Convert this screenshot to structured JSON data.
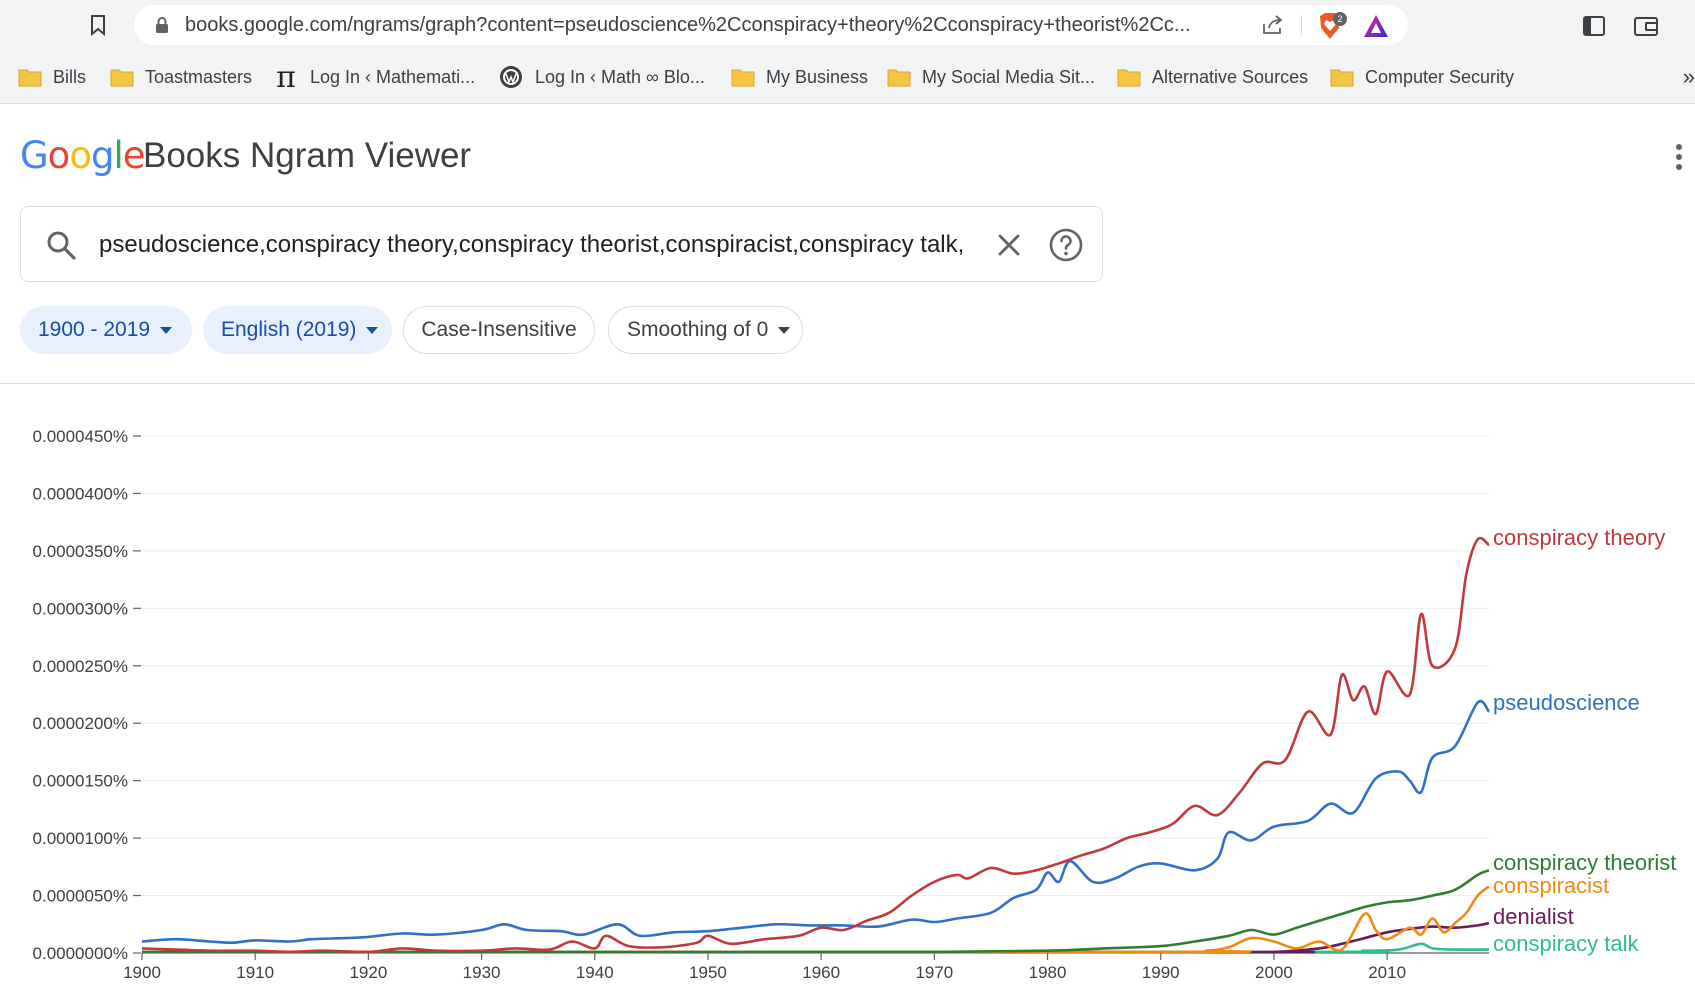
{
  "browser": {
    "url": "books.google.com/ngrams/graph?content=pseudoscience%2Cconspiracy+theory%2Cconspiracy+theorist%2Cc...",
    "brave_badge": "2",
    "bookmarks": [
      {
        "label": "Bills",
        "icon": "folder-icon"
      },
      {
        "label": "Toastmasters",
        "icon": "folder-icon"
      },
      {
        "label": "Log In ‹ Mathemati...",
        "icon": "pi-icon"
      },
      {
        "label": "Log In ‹ Math ∞ Blo...",
        "icon": "wordpress-icon"
      },
      {
        "label": "My Business",
        "icon": "folder-icon"
      },
      {
        "label": "My Social Media Sit...",
        "icon": "folder-icon"
      },
      {
        "label": "Alternative Sources",
        "icon": "folder-icon"
      },
      {
        "label": "Computer Security",
        "icon": "folder-icon"
      }
    ],
    "bookmarks_more": "»"
  },
  "header": {
    "logo": {
      "g1": "G",
      "o1": "o",
      "o2": "o",
      "g2": "g",
      "l": "l",
      "e": "e"
    },
    "title": "Books Ngram Viewer"
  },
  "search": {
    "value": "pseudoscience,conspiracy theory,conspiracy theorist,conspiracist,conspiracy talk,"
  },
  "filters": {
    "years": "1900 - 2019",
    "corpus": "English (2019)",
    "case": "Case-Insensitive",
    "smoothing": "Smoothing of 0"
  },
  "chart_data": {
    "type": "line",
    "x_range": [
      1900,
      2019
    ],
    "ylim": [
      0,
      4.5e-05
    ],
    "y_unit": "%",
    "y_ticks": [
      "0.0000000%",
      "0.0000050%",
      "0.0000100%",
      "0.0000150%",
      "0.0000200%",
      "0.0000250%",
      "0.0000300%",
      "0.0000350%",
      "0.0000400%",
      "0.0000450%"
    ],
    "x_ticks": [
      "1900",
      "1910",
      "1920",
      "1930",
      "1940",
      "1950",
      "1960",
      "1970",
      "1980",
      "1990",
      "2000",
      "2010"
    ],
    "grid": true,
    "series": [
      {
        "name": "conspiracy theory",
        "color": "#c0393b",
        "points": [
          [
            1900,
            4e-07
          ],
          [
            1903,
            3e-07
          ],
          [
            1906,
            2e-07
          ],
          [
            1910,
            2e-07
          ],
          [
            1913,
            1e-07
          ],
          [
            1916,
            2e-07
          ],
          [
            1920,
            1e-07
          ],
          [
            1923,
            4e-07
          ],
          [
            1926,
            2e-07
          ],
          [
            1930,
            2e-07
          ],
          [
            1933,
            4e-07
          ],
          [
            1936,
            3e-07
          ],
          [
            1938,
            1e-06
          ],
          [
            1940,
            4e-07
          ],
          [
            1941,
            1.5e-06
          ],
          [
            1943,
            6e-07
          ],
          [
            1946,
            5e-07
          ],
          [
            1949,
            9e-07
          ],
          [
            1950,
            1.5e-06
          ],
          [
            1952,
            8e-07
          ],
          [
            1955,
            1.2e-06
          ],
          [
            1958,
            1.5e-06
          ],
          [
            1960,
            2.2e-06
          ],
          [
            1962,
            2e-06
          ],
          [
            1964,
            2.8e-06
          ],
          [
            1966,
            3.5e-06
          ],
          [
            1968,
            5e-06
          ],
          [
            1970,
            6.2e-06
          ],
          [
            1972,
            6.8e-06
          ],
          [
            1973,
            6.5e-06
          ],
          [
            1975,
            7.4e-06
          ],
          [
            1977,
            6.9e-06
          ],
          [
            1979,
            7.2e-06
          ],
          [
            1981,
            7.8e-06
          ],
          [
            1983,
            8.5e-06
          ],
          [
            1985,
            9.1e-06
          ],
          [
            1987,
            1e-05
          ],
          [
            1989,
            1.05e-05
          ],
          [
            1991,
            1.12e-05
          ],
          [
            1993,
            1.28e-05
          ],
          [
            1995,
            1.2e-05
          ],
          [
            1997,
            1.4e-05
          ],
          [
            1999,
            1.65e-05
          ],
          [
            2001,
            1.68e-05
          ],
          [
            2003,
            2.1e-05
          ],
          [
            2005,
            1.9e-05
          ],
          [
            2006,
            2.42e-05
          ],
          [
            2007,
            2.2e-05
          ],
          [
            2008,
            2.32e-05
          ],
          [
            2009,
            2.08e-05
          ],
          [
            2010,
            2.45e-05
          ],
          [
            2012,
            2.25e-05
          ],
          [
            2013,
            2.95e-05
          ],
          [
            2014,
            2.5e-05
          ],
          [
            2016,
            2.65e-05
          ],
          [
            2017,
            3.3e-05
          ],
          [
            2018,
            3.6e-05
          ],
          [
            2019,
            3.55e-05
          ]
        ]
      },
      {
        "name": "pseudoscience",
        "color": "#3071c4",
        "points": [
          [
            1900,
            1e-06
          ],
          [
            1903,
            1.2e-06
          ],
          [
            1906,
            1e-06
          ],
          [
            1908,
            9e-07
          ],
          [
            1910,
            1.1e-06
          ],
          [
            1913,
            1e-06
          ],
          [
            1915,
            1.2e-06
          ],
          [
            1918,
            1.3e-06
          ],
          [
            1920,
            1.4e-06
          ],
          [
            1923,
            1.7e-06
          ],
          [
            1926,
            1.6e-06
          ],
          [
            1930,
            2e-06
          ],
          [
            1932,
            2.5e-06
          ],
          [
            1934,
            2e-06
          ],
          [
            1937,
            1.9e-06
          ],
          [
            1939,
            1.6e-06
          ],
          [
            1942,
            2.5e-06
          ],
          [
            1944,
            1.5e-06
          ],
          [
            1947,
            1.8e-06
          ],
          [
            1950,
            1.9e-06
          ],
          [
            1953,
            2.2e-06
          ],
          [
            1956,
            2.5e-06
          ],
          [
            1959,
            2.4e-06
          ],
          [
            1962,
            2.4e-06
          ],
          [
            1965,
            2.3e-06
          ],
          [
            1968,
            2.9e-06
          ],
          [
            1970,
            2.7e-06
          ],
          [
            1972,
            3e-06
          ],
          [
            1975,
            3.5e-06
          ],
          [
            1977,
            4.8e-06
          ],
          [
            1979,
            5.5e-06
          ],
          [
            1980,
            7e-06
          ],
          [
            1981,
            6.2e-06
          ],
          [
            1982,
            8e-06
          ],
          [
            1984,
            6.2e-06
          ],
          [
            1986,
            6.5e-06
          ],
          [
            1988,
            7.5e-06
          ],
          [
            1990,
            7.8e-06
          ],
          [
            1993,
            7.2e-06
          ],
          [
            1995,
            8.2e-06
          ],
          [
            1996,
            1.05e-05
          ],
          [
            1998,
            9.8e-06
          ],
          [
            2000,
            1.1e-05
          ],
          [
            2003,
            1.15e-05
          ],
          [
            2005,
            1.3e-05
          ],
          [
            2007,
            1.22e-05
          ],
          [
            2009,
            1.52e-05
          ],
          [
            2011,
            1.58e-05
          ],
          [
            2012,
            1.5e-05
          ],
          [
            2013,
            1.4e-05
          ],
          [
            2014,
            1.7e-05
          ],
          [
            2016,
            1.8e-05
          ],
          [
            2018,
            2.18e-05
          ],
          [
            2019,
            2.1e-05
          ]
        ]
      },
      {
        "name": "conspiracy theorist",
        "color": "#2e7d32",
        "points": [
          [
            1900,
            0.0
          ],
          [
            1950,
            0.0
          ],
          [
            1970,
            1e-07
          ],
          [
            1980,
            2e-07
          ],
          [
            1985,
            4e-07
          ],
          [
            1990,
            6e-07
          ],
          [
            1993,
            1e-06
          ],
          [
            1996,
            1.5e-06
          ],
          [
            1998,
            2e-06
          ],
          [
            2000,
            1.6e-06
          ],
          [
            2002,
            2.2e-06
          ],
          [
            2004,
            2.8e-06
          ],
          [
            2006,
            3.4e-06
          ],
          [
            2008,
            4e-06
          ],
          [
            2010,
            4.4e-06
          ],
          [
            2012,
            4.6e-06
          ],
          [
            2014,
            5e-06
          ],
          [
            2016,
            5.5e-06
          ],
          [
            2018,
            6.8e-06
          ],
          [
            2019,
            7.2e-06
          ]
        ]
      },
      {
        "name": "conspiracist",
        "color": "#ef8a16",
        "points": [
          [
            1900,
            0.0
          ],
          [
            1990,
            1e-07
          ],
          [
            1994,
            2e-07
          ],
          [
            1996,
            5e-07
          ],
          [
            1998,
            1.3e-06
          ],
          [
            2000,
            1e-06
          ],
          [
            2002,
            4e-07
          ],
          [
            2004,
            1e-06
          ],
          [
            2006,
            3e-07
          ],
          [
            2008,
            3.4e-06
          ],
          [
            2009,
            2e-06
          ],
          [
            2010,
            1.2e-06
          ],
          [
            2012,
            2.2e-06
          ],
          [
            2013,
            1.6e-06
          ],
          [
            2014,
            3e-06
          ],
          [
            2015,
            1.8e-06
          ],
          [
            2016,
            2.6e-06
          ],
          [
            2017,
            3.5e-06
          ],
          [
            2018,
            5e-06
          ],
          [
            2019,
            5.8e-06
          ]
        ]
      },
      {
        "name": "denialist",
        "color": "#6a1b59",
        "points": [
          [
            1900,
            0.0
          ],
          [
            1995,
            0.0
          ],
          [
            2000,
            1e-07
          ],
          [
            2004,
            4e-07
          ],
          [
            2006,
            8e-07
          ],
          [
            2008,
            1.3e-06
          ],
          [
            2010,
            1.8e-06
          ],
          [
            2012,
            2.1e-06
          ],
          [
            2014,
            2.3e-06
          ],
          [
            2016,
            2.2e-06
          ],
          [
            2018,
            2.4e-06
          ],
          [
            2019,
            2.6e-06
          ]
        ]
      },
      {
        "name": "conspiracy talk",
        "color": "#2fbf84",
        "points": [
          [
            1900,
            0.0
          ],
          [
            2000,
            1e-07
          ],
          [
            2008,
            2e-07
          ],
          [
            2011,
            3e-07
          ],
          [
            2013,
            8e-07
          ],
          [
            2014,
            4e-07
          ],
          [
            2016,
            3e-07
          ],
          [
            2019,
            3e-07
          ]
        ]
      }
    ]
  }
}
